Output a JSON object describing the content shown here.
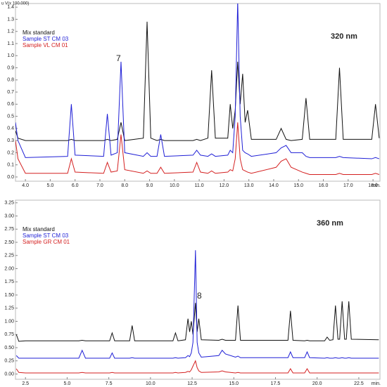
{
  "chart_data": [
    {
      "type": "line",
      "ylabel": "u V(x 100.000)",
      "xlabel": "min.",
      "legend": "upper left",
      "annotations": [
        "320 nm",
        "7"
      ],
      "xlim": [
        3.6,
        18.28
      ],
      "ylim": [
        -0.035,
        1.43
      ],
      "xticks": [
        {
          "value": 4,
          "label": "4.0"
        },
        {
          "value": 5,
          "label": "5.0"
        },
        {
          "value": 6,
          "label": "6.0"
        },
        {
          "value": 7,
          "label": "7.0"
        },
        {
          "value": 8,
          "label": "8.0"
        },
        {
          "value": 9,
          "label": "9.0"
        },
        {
          "value": 10,
          "label": "10.0"
        },
        {
          "value": 11,
          "label": "11.0"
        },
        {
          "value": 12,
          "label": "12.0"
        },
        {
          "value": 13,
          "label": "13.0"
        },
        {
          "value": 14,
          "label": "14.0"
        },
        {
          "value": 15,
          "label": "15.0"
        },
        {
          "value": 16,
          "label": "16.0"
        },
        {
          "value": 17,
          "label": "17.0"
        },
        {
          "value": 18,
          "label": "18.0"
        }
      ],
      "yticks": [
        {
          "value": 0,
          "label": "0.0"
        },
        0.1,
        0.2,
        0.3,
        0.4,
        0.5,
        0.6,
        0.7,
        0.8,
        0.9,
        {
          "value": 1,
          "label": "1.0"
        },
        1.1,
        1.2,
        1.3,
        1.4
      ],
      "x": [
        3.6,
        3.7,
        4.0,
        5.7,
        5.85,
        6.0,
        7.15,
        7.3,
        7.45,
        7.7,
        7.85,
        8.0,
        8.75,
        8.9,
        9.05,
        9.3,
        9.45,
        9.6,
        10.75,
        10.9,
        11.05,
        11.35,
        11.5,
        11.65,
        12.15,
        12.25,
        12.35,
        12.45,
        12.55,
        12.65,
        12.75,
        12.85,
        12.95,
        13.1,
        14.1,
        14.3,
        14.5,
        14.7,
        15.15,
        15.3,
        15.45,
        16.5,
        16.65,
        16.8,
        17.95,
        18.1,
        18.25
      ],
      "series": [
        {
          "name": "Mix standard",
          "color": "#111111",
          "values": [
            0.38,
            0.32,
            0.3,
            0.3,
            0.31,
            0.3,
            0.3,
            0.31,
            0.3,
            0.31,
            0.45,
            0.3,
            0.32,
            1.28,
            0.32,
            0.3,
            0.31,
            0.3,
            0.3,
            0.31,
            0.3,
            0.32,
            0.88,
            0.32,
            0.32,
            0.6,
            0.4,
            0.55,
            0.95,
            0.6,
            0.85,
            0.45,
            0.55,
            0.31,
            0.31,
            0.4,
            0.31,
            0.3,
            0.31,
            0.65,
            0.31,
            0.31,
            0.9,
            0.31,
            0.31,
            0.6,
            0.32
          ]
        },
        {
          "name": "Sample ST CM 03",
          "color": "#1f1fd6",
          "values": [
            0.45,
            0.3,
            0.16,
            0.17,
            0.6,
            0.18,
            0.17,
            0.52,
            0.18,
            0.2,
            0.95,
            0.2,
            0.17,
            0.2,
            0.17,
            0.17,
            0.35,
            0.17,
            0.18,
            0.22,
            0.18,
            0.17,
            0.19,
            0.17,
            0.18,
            0.22,
            0.2,
            0.5,
            1.45,
            0.5,
            0.22,
            0.2,
            0.19,
            0.17,
            0.2,
            0.24,
            0.26,
            0.2,
            0.2,
            0.17,
            0.16,
            0.16,
            0.17,
            0.16,
            0.15,
            0.16,
            0.15
          ]
        },
        {
          "name": "Sample VL CM 01",
          "color": "#d42020",
          "values": [
            0.3,
            0.15,
            0.03,
            0.03,
            0.15,
            0.04,
            0.03,
            0.12,
            0.04,
            0.05,
            0.35,
            0.06,
            0.03,
            0.05,
            0.03,
            0.03,
            0.08,
            0.03,
            0.04,
            0.12,
            0.04,
            0.03,
            0.05,
            0.03,
            0.04,
            0.06,
            0.05,
            0.15,
            0.45,
            0.15,
            0.06,
            0.05,
            0.04,
            0.03,
            0.08,
            0.13,
            0.15,
            0.08,
            0.04,
            0.03,
            0.02,
            0.02,
            0.03,
            0.02,
            0.02,
            0.03,
            0.02
          ]
        }
      ]
    },
    {
      "type": "line",
      "xlabel": "min.",
      "legend": "upper left",
      "annotations": [
        "360 nm",
        "8"
      ],
      "xlim": [
        1.9,
        23.77
      ],
      "ylim": [
        -0.1,
        3.3
      ],
      "xticks": [
        2.5,
        {
          "value": 5,
          "label": "5.0"
        },
        7.5,
        {
          "value": 10,
          "label": "10.0"
        },
        12.5,
        {
          "value": 15,
          "label": "15.0"
        },
        17.5,
        {
          "value": 20,
          "label": "20.0"
        },
        22.5
      ],
      "yticks": [
        {
          "value": 0,
          "label": "0.00"
        },
        0.25,
        {
          "value": 0.5,
          "label": "0.50"
        },
        0.75,
        {
          "value": 1,
          "label": "1.00"
        },
        1.25,
        {
          "value": 1.5,
          "label": "1.50"
        },
        1.75,
        {
          "value": 2,
          "label": "2.00"
        },
        2.25,
        {
          "value": 2.5,
          "label": "2.50"
        },
        2.75,
        {
          "value": 3,
          "label": "3.00"
        },
        3.25
      ],
      "x": [
        1.95,
        2.1,
        2.5,
        5.7,
        5.9,
        6.1,
        7.55,
        7.7,
        7.85,
        8.75,
        8.9,
        9.05,
        11.35,
        11.5,
        11.65,
        12.1,
        12.25,
        12.35,
        12.45,
        12.55,
        12.7,
        12.8,
        12.9,
        13.05,
        14.1,
        14.3,
        14.5,
        15.1,
        15.25,
        15.4,
        18.25,
        18.4,
        18.55,
        19.25,
        19.4,
        19.55,
        20.45,
        20.6,
        20.75,
        20.95,
        21.1,
        21.25,
        21.35,
        21.5,
        21.65,
        21.75,
        21.9,
        22.05,
        23.7
      ],
      "series": [
        {
          "name": "Mix standard",
          "color": "#111111",
          "values": [
            0.75,
            0.62,
            0.63,
            0.63,
            0.64,
            0.63,
            0.63,
            0.78,
            0.63,
            0.63,
            0.92,
            0.63,
            0.63,
            0.78,
            0.63,
            0.65,
            1.05,
            0.8,
            1.0,
            0.75,
            1.35,
            0.8,
            1.05,
            0.65,
            0.64,
            0.66,
            0.64,
            0.64,
            1.3,
            0.64,
            0.64,
            1.2,
            0.64,
            0.63,
            0.64,
            0.63,
            0.63,
            0.7,
            0.64,
            0.65,
            1.3,
            0.66,
            0.66,
            1.38,
            0.66,
            0.66,
            1.38,
            0.66,
            0.65
          ]
        },
        {
          "name": "Sample ST CM 03",
          "color": "#1f1fd6",
          "values": [
            0.35,
            0.3,
            0.3,
            0.3,
            0.45,
            0.3,
            0.3,
            0.4,
            0.3,
            0.3,
            0.31,
            0.3,
            0.3,
            0.31,
            0.3,
            0.31,
            0.35,
            0.33,
            0.4,
            0.6,
            2.35,
            0.6,
            0.4,
            0.32,
            0.35,
            0.45,
            0.38,
            0.32,
            0.34,
            0.31,
            0.31,
            0.42,
            0.31,
            0.31,
            0.42,
            0.31,
            0.3,
            0.31,
            0.3,
            0.3,
            0.31,
            0.3,
            0.3,
            0.31,
            0.3,
            0.3,
            0.31,
            0.3,
            0.3
          ]
        },
        {
          "name": "Sample GR CM 01",
          "color": "#d42020",
          "values": [
            0.1,
            0.03,
            0.02,
            0.02,
            0.03,
            0.02,
            0.02,
            0.03,
            0.02,
            0.02,
            0.02,
            0.02,
            0.02,
            0.03,
            0.02,
            0.03,
            0.05,
            0.04,
            0.08,
            0.15,
            0.25,
            0.12,
            0.06,
            0.03,
            0.04,
            0.06,
            0.04,
            0.02,
            0.03,
            0.02,
            0.02,
            0.1,
            0.02,
            0.02,
            0.1,
            0.02,
            0.02,
            0.02,
            0.02,
            0.02,
            0.02,
            0.02,
            0.02,
            0.02,
            0.02,
            0.02,
            0.02,
            0.02,
            0.02
          ]
        }
      ]
    }
  ]
}
